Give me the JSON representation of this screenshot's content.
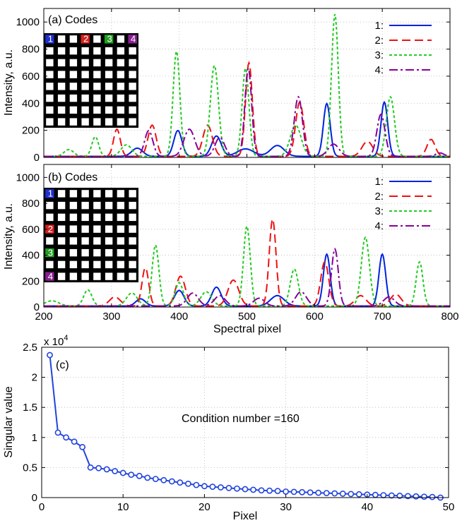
{
  "chart_data": [
    {
      "type": "line",
      "panel_label": "(a) Codes",
      "ylabel": "Intensity, a.u.",
      "xlim": [
        200,
        800
      ],
      "ylim": [
        0,
        1100
      ],
      "yticks": [
        0,
        200,
        400,
        600,
        800,
        1000
      ],
      "xticks": [
        200,
        300,
        400,
        500,
        600,
        700,
        800
      ],
      "grid": true,
      "legend_position": "top-right",
      "inset": {
        "type": "grid-code",
        "rows": 7,
        "cols": 7,
        "marks": [
          {
            "label": "1",
            "row": 0,
            "col": 0,
            "color": "#1f2fd0"
          },
          {
            "label": "2",
            "row": 0,
            "col": 3,
            "color": "#d42020"
          },
          {
            "label": "3",
            "row": 0,
            "col": 5,
            "color": "#20a020"
          },
          {
            "label": "4",
            "row": 0,
            "col": 7,
            "color": "#8a2090"
          }
        ]
      },
      "series": [
        {
          "name": "1:",
          "color": "#0022dd",
          "dash": "",
          "baseline": 8,
          "peaks": [
            [
              338,
              60,
              8
            ],
            [
              398,
              190,
              6
            ],
            [
              455,
              150,
              7
            ],
            [
              498,
              55,
              12
            ],
            [
              545,
              80,
              10
            ],
            [
              618,
              390,
              5
            ],
            [
              703,
              400,
              5
            ]
          ]
        },
        {
          "name": "2:",
          "color": "#ee1111",
          "dash": "12 6",
          "baseline": 8,
          "peaks": [
            [
              308,
              200,
              5
            ],
            [
              360,
              230,
              6
            ],
            [
              442,
              230,
              7
            ],
            [
              503,
              690,
              5
            ],
            [
              578,
              400,
              6
            ],
            [
              678,
              110,
              8
            ],
            [
              772,
              125,
              6
            ]
          ]
        },
        {
          "name": "3:",
          "color": "#22cc22",
          "dash": "4 3",
          "baseline": 8,
          "peaks": [
            [
              237,
              50,
              7
            ],
            [
              276,
              145,
              5
            ],
            [
              322,
              85,
              8
            ],
            [
              396,
              775,
              5
            ],
            [
              452,
              670,
              6
            ],
            [
              498,
              650,
              5
            ],
            [
              572,
              230,
              8
            ],
            [
              630,
              1050,
              5
            ],
            [
              712,
              440,
              6
            ]
          ]
        },
        {
          "name": "4:",
          "color": "#880099",
          "dash": "12 4 3 4",
          "baseline": 8,
          "peaks": [
            [
              355,
              190,
              6
            ],
            [
              415,
              200,
              8
            ],
            [
              460,
              140,
              7
            ],
            [
              502,
              650,
              5
            ],
            [
              576,
              440,
              6
            ],
            [
              628,
              90,
              8
            ],
            [
              698,
              310,
              6
            ],
            [
              785,
              25,
              6
            ]
          ]
        }
      ]
    },
    {
      "type": "line",
      "panel_label": "(b) Codes",
      "ylabel": "Intensity, a.u.",
      "xlabel": "Spectral pixel",
      "xlim": [
        200,
        800
      ],
      "ylim": [
        0,
        1100
      ],
      "yticks": [
        0,
        200,
        400,
        600,
        800,
        1000
      ],
      "xticks": [
        200,
        300,
        400,
        500,
        600,
        700,
        800
      ],
      "grid": true,
      "legend_position": "top-right",
      "inset": {
        "type": "grid-code",
        "rows": 7,
        "cols": 7,
        "marks": [
          {
            "label": "1",
            "row": 0,
            "col": 0,
            "color": "#1f2fd0"
          },
          {
            "label": "2",
            "row": 3,
            "col": 0,
            "color": "#d42020"
          },
          {
            "label": "3",
            "row": 5,
            "col": 0,
            "color": "#20a020"
          },
          {
            "label": "4",
            "row": 7,
            "col": 0,
            "color": "#8a2090"
          }
        ]
      },
      "series": [
        {
          "name": "1:",
          "color": "#0022dd",
          "dash": "",
          "baseline": 8,
          "peaks": [
            [
              343,
              55,
              7
            ],
            [
              400,
              120,
              7
            ],
            [
              455,
              145,
              7
            ],
            [
              545,
              80,
              10
            ],
            [
              618,
              400,
              5
            ],
            [
              700,
              400,
              5
            ]
          ]
        },
        {
          "name": "2:",
          "color": "#ee1111",
          "dash": "12 6",
          "baseline": 8,
          "peaks": [
            [
              305,
              70,
              8
            ],
            [
              350,
              295,
              5
            ],
            [
              402,
              230,
              7
            ],
            [
              480,
              200,
              8
            ],
            [
              538,
              670,
              5
            ],
            [
              615,
              340,
              6
            ],
            [
              668,
              80,
              8
            ],
            [
              720,
              90,
              8
            ]
          ]
        },
        {
          "name": "3:",
          "color": "#22cc22",
          "dash": "4 3",
          "baseline": 8,
          "peaks": [
            [
              212,
              40,
              10
            ],
            [
              265,
              125,
              6
            ],
            [
              330,
              100,
              8
            ],
            [
              365,
              470,
              5
            ],
            [
              400,
              180,
              6
            ],
            [
              440,
              110,
              8
            ],
            [
              500,
              615,
              5
            ],
            [
              570,
              285,
              6
            ],
            [
              675,
              530,
              6
            ],
            [
              755,
              340,
              5
            ]
          ]
        },
        {
          "name": "4:",
          "color": "#880099",
          "dash": "12 4 3 4",
          "baseline": 8,
          "peaks": [
            [
              420,
              100,
              8
            ],
            [
              460,
              80,
              8
            ],
            [
              518,
              60,
              8
            ],
            [
              580,
              110,
              8
            ],
            [
              630,
              440,
              5
            ],
            [
              710,
              70,
              8
            ]
          ]
        }
      ]
    },
    {
      "type": "line",
      "panel_label": "(c)",
      "xlabel": "Pixel",
      "ylabel": "Singular value",
      "exponent_label": "x 10",
      "exponent_power": "4",
      "xlim": [
        0,
        50
      ],
      "ylim": [
        0,
        2.5
      ],
      "xticks": [
        0,
        10,
        20,
        30,
        40,
        50
      ],
      "yticks": [
        0,
        0.5,
        1,
        1.5,
        2,
        2.5
      ],
      "ytick_labels": [
        "0",
        "0.5",
        "1",
        "1.5",
        "2",
        "2.5"
      ],
      "grid": true,
      "annotation": "Condition number =160",
      "series": [
        {
          "color": "#2244dd",
          "marker": "circle",
          "x": [
            1,
            2,
            3,
            4,
            5,
            6,
            7,
            8,
            9,
            10,
            11,
            12,
            13,
            14,
            15,
            16,
            17,
            18,
            19,
            20,
            21,
            22,
            23,
            24,
            25,
            26,
            27,
            28,
            29,
            30,
            31,
            32,
            33,
            34,
            35,
            36,
            37,
            38,
            39,
            40,
            41,
            42,
            43,
            44,
            45,
            46,
            47,
            48,
            49
          ],
          "y": [
            2.37,
            1.08,
            1.0,
            0.93,
            0.84,
            0.5,
            0.49,
            0.47,
            0.44,
            0.41,
            0.38,
            0.36,
            0.33,
            0.31,
            0.29,
            0.27,
            0.25,
            0.23,
            0.21,
            0.19,
            0.18,
            0.17,
            0.16,
            0.15,
            0.14,
            0.13,
            0.12,
            0.115,
            0.11,
            0.1,
            0.095,
            0.09,
            0.085,
            0.08,
            0.075,
            0.07,
            0.065,
            0.06,
            0.055,
            0.05,
            0.045,
            0.04,
            0.035,
            0.03,
            0.025,
            0.02,
            0.015,
            0.01,
            0.0
          ]
        }
      ]
    }
  ]
}
